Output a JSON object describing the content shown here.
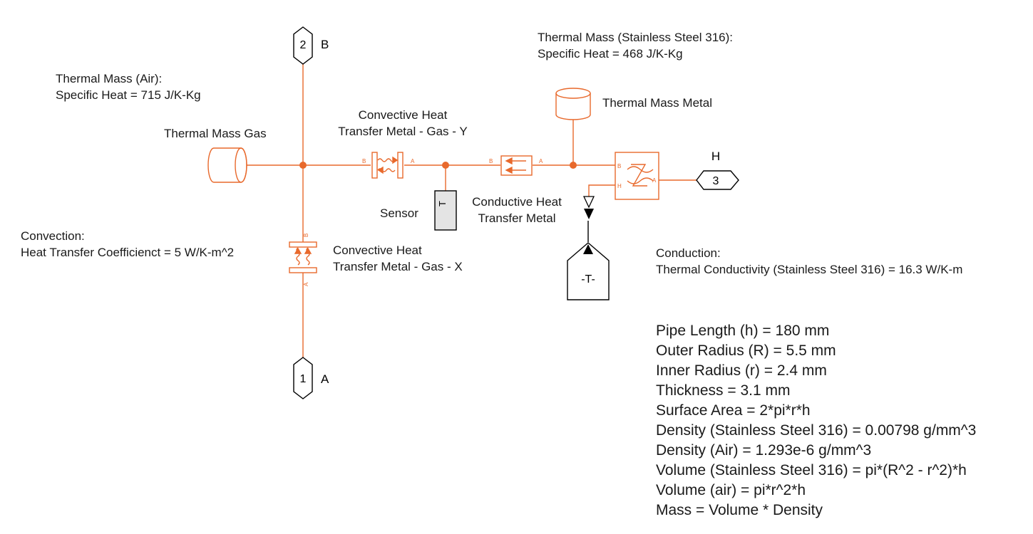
{
  "colors": {
    "wire": "#e8692c",
    "block": "#e8692c",
    "port_fill": "#ffffff",
    "text": "#1a1a1a",
    "sensor_fill": "#e4e4e4"
  },
  "ports": {
    "port_b": {
      "number": "2",
      "label": "B"
    },
    "port_a": {
      "number": "1",
      "label": "A"
    },
    "port_h": {
      "number": "3",
      "label": "H"
    }
  },
  "annotations": {
    "air_mass": [
      "Thermal Mass  (Air):",
      "Specific Heat = 715 J/K-Kg"
    ],
    "steel_mass": [
      "Thermal Mass (Stainless Steel 316):",
      "Specific Heat = 468 J/K-Kg"
    ],
    "convection": [
      "Convection:",
      "Heat Transfer Coefficienct = 5 W/K-m^2"
    ],
    "conduction": [
      "Conduction:",
      "Thermal Conductivity (Stainless Steel 316) = 16.3 W/K-m"
    ]
  },
  "blocks": {
    "thermal_mass_gas": {
      "label": "Thermal Mass Gas",
      "icon": "cylinder-icon"
    },
    "thermal_mass_metal": {
      "label": "Thermal Mass Metal",
      "icon": "cylinder-icon"
    },
    "conv_y": {
      "label_lines": [
        "Convective Heat",
        "Transfer Metal - Gas - Y"
      ],
      "port_left": "B",
      "port_right": "A",
      "icon": "convection-icon"
    },
    "conv_x": {
      "label_lines": [
        "Convective Heat",
        "Transfer Metal - Gas - X"
      ],
      "port_top": "B",
      "port_bottom": "A",
      "icon": "convection-icon"
    },
    "conductive": {
      "label_lines": [
        "Conductive Heat",
        "Transfer Metal"
      ],
      "port_left": "B",
      "port_right": "A",
      "icon": "conduction-icon"
    },
    "sensor": {
      "label": "Sensor",
      "glyph": "T",
      "icon": "temperature-sensor-icon"
    },
    "converter": {
      "port_b": "B",
      "port_a": "A",
      "port_h": "H",
      "icon": "converter-icon"
    },
    "goto_tag": {
      "label": "-T-"
    }
  },
  "parameters": [
    "Pipe Length (h) = 180 mm",
    "Outer Radius (R) = 5.5 mm",
    "Inner Radius (r) = 2.4 mm",
    "Thickness = 3.1 mm",
    "Surface Area = 2*pi*r*h",
    "Density (Stainless Steel 316) = 0.00798 g/mm^3",
    "Density (Air) = 1.293e-6 g/mm^3",
    "Volume (Stainless Steel 316) = pi*(R^2 - r^2)*h",
    "Volume (air) = pi*r^2*h",
    "Mass = Volume * Density"
  ]
}
